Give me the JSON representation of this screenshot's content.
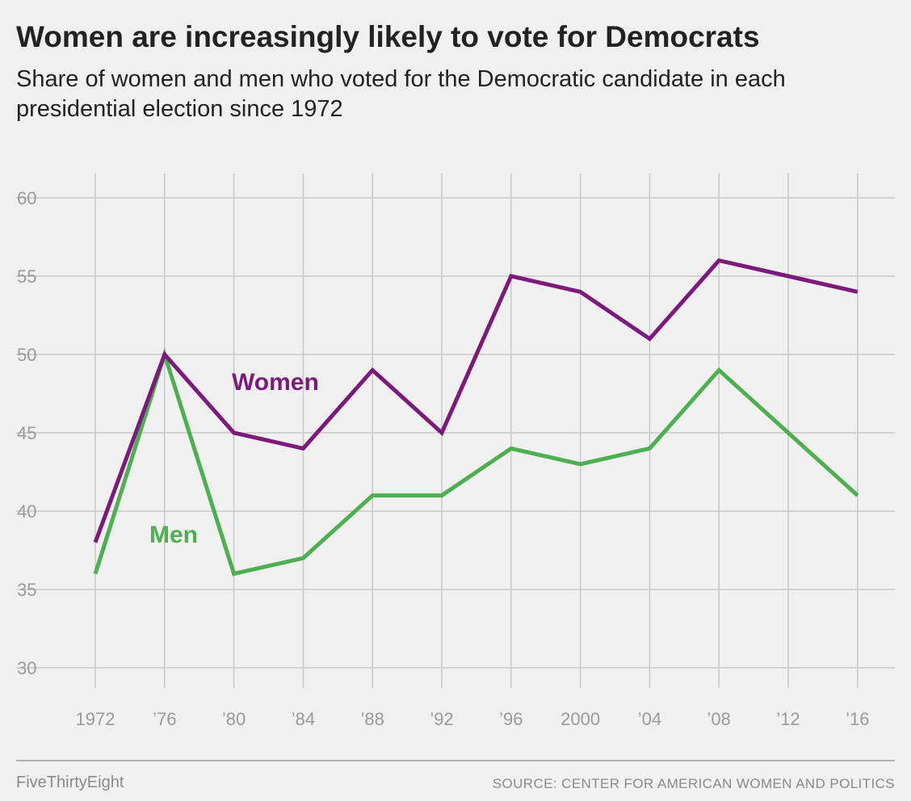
{
  "header": {
    "title": "Women are increasingly likely to vote for Democrats",
    "subtitle": "Share of women and men who voted for the Democratic candidate in each presidential election since 1972"
  },
  "footer": {
    "brand": "FiveThirtyEight",
    "source": "SOURCE: CENTER FOR AMERICAN WOMEN AND POLITICS"
  },
  "chart_data": {
    "type": "line",
    "x": [
      1972,
      1976,
      1980,
      1984,
      1988,
      1992,
      1996,
      2000,
      2004,
      2008,
      2012,
      2016
    ],
    "x_tick_labels": [
      "1972",
      "’76",
      "’80",
      "’84",
      "’88",
      "’92",
      "’96",
      "2000",
      "’04",
      "’08",
      "’12",
      "’16"
    ],
    "ylim": [
      30,
      60
    ],
    "y_ticks": [
      30,
      35,
      40,
      45,
      50,
      55,
      60
    ],
    "grid": true,
    "series": [
      {
        "name": "Women",
        "color": "#7b1a7b",
        "values": [
          38,
          50,
          45,
          44,
          49,
          45,
          55,
          54,
          51,
          56,
          55,
          54
        ]
      },
      {
        "name": "Men",
        "color": "#4caf50",
        "values": [
          36,
          50,
          36,
          37,
          41,
          41,
          44,
          43,
          44,
          49,
          45,
          41
        ]
      }
    ]
  }
}
